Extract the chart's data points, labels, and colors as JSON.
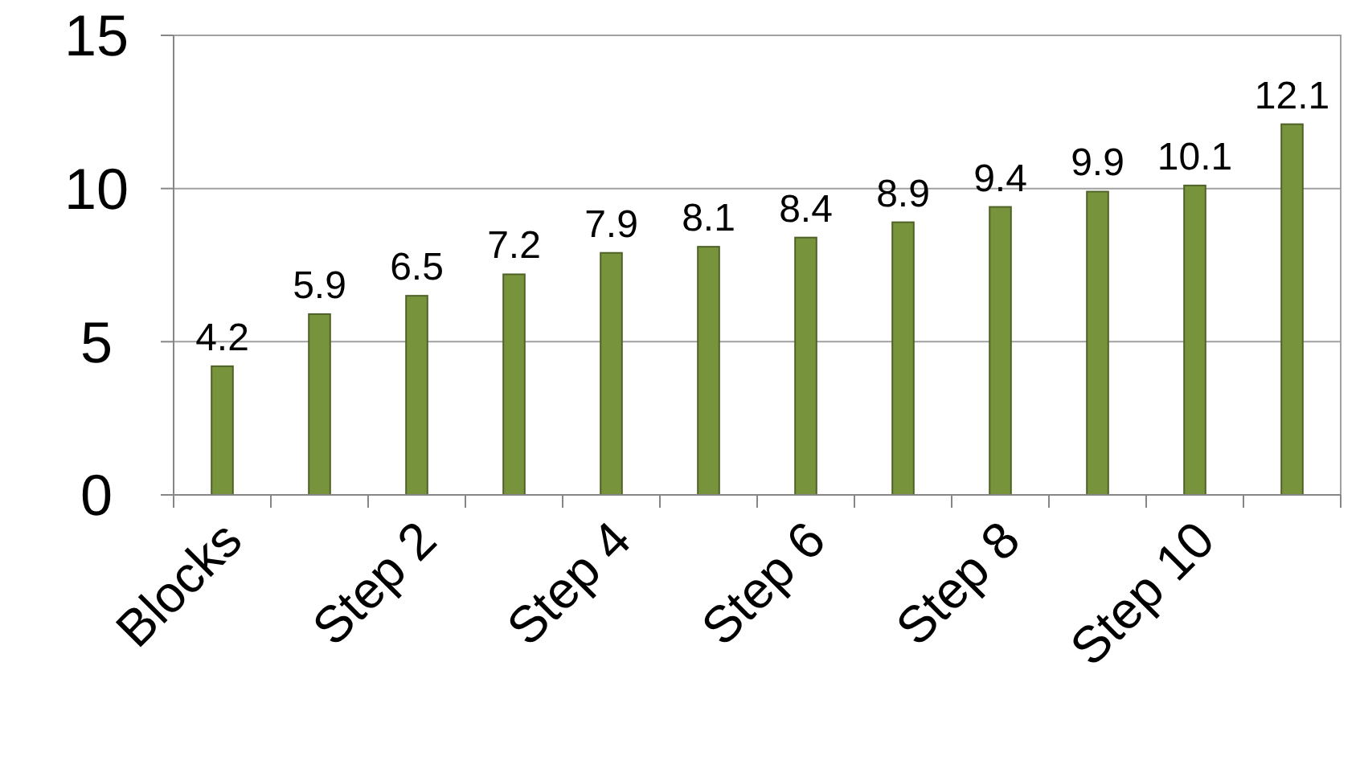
{
  "chart_data": {
    "type": "bar",
    "categories": [
      "Blocks",
      null,
      "Step 2",
      null,
      "Step 4",
      null,
      "Step 6",
      null,
      "Step 8",
      null,
      "Step 10",
      null
    ],
    "values": [
      4.2,
      5.9,
      6.5,
      7.2,
      7.9,
      8.1,
      8.4,
      8.9,
      9.4,
      9.9,
      10.1,
      12.1
    ],
    "color": "#77933c",
    "ylim": [
      0,
      15
    ],
    "yticks": [
      0,
      5,
      10,
      15
    ],
    "grid": "y",
    "data_labels": true
  }
}
